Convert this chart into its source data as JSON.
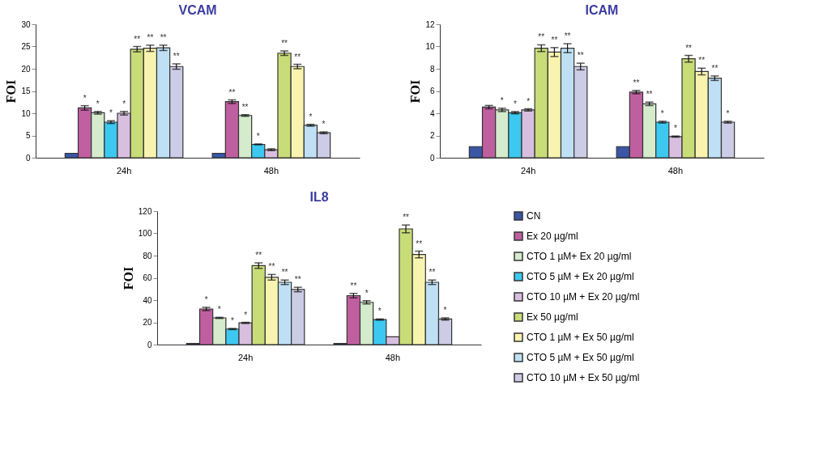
{
  "chart_data": [
    {
      "type": "bar",
      "title": "VCAM",
      "ylabel": "FOI",
      "categories": [
        "24h",
        "48h"
      ],
      "ylim": [
        0,
        30
      ],
      "yticks": [
        0,
        5,
        10,
        15,
        20,
        25,
        30
      ],
      "grid": false,
      "series": [
        {
          "color": "#3a56a5",
          "values": [
            1,
            1
          ]
        },
        {
          "color": "#c05fa0",
          "values": [
            11.2,
            12.6
          ],
          "errors": [
            0.5,
            0.4
          ],
          "value_labels": [
            "*",
            "**"
          ]
        },
        {
          "color": "#d4ebcc",
          "values": [
            10.1,
            9.5
          ],
          "errors": [
            0.3,
            0.2
          ],
          "value_labels": [
            "*",
            "**"
          ]
        },
        {
          "color": "#3cc8f0",
          "values": [
            8.0,
            3.0
          ],
          "errors": [
            0.3,
            0.1
          ],
          "value_labels": [
            "*",
            "*"
          ]
        },
        {
          "color": "#d8bfe0",
          "values": [
            10.0,
            1.8
          ],
          "errors": [
            0.4,
            0.2
          ],
          "value_labels": [
            "*",
            null
          ]
        },
        {
          "color": "#c8dc78",
          "values": [
            24.4,
            23.5
          ],
          "errors": [
            0.6,
            0.5
          ],
          "value_labels": [
            "**",
            "**"
          ]
        },
        {
          "color": "#f8f4b0",
          "values": [
            24.6,
            20.5
          ],
          "errors": [
            0.7,
            0.5
          ],
          "value_labels": [
            "**",
            "**"
          ]
        },
        {
          "color": "#bfe0f4",
          "values": [
            24.7,
            7.3
          ],
          "errors": [
            0.6,
            0.2
          ],
          "value_labels": [
            "**",
            "*"
          ]
        },
        {
          "color": "#cccce6",
          "values": [
            20.5,
            5.6
          ],
          "errors": [
            0.6,
            0.2
          ],
          "value_labels": [
            "**",
            "*"
          ]
        }
      ]
    },
    {
      "type": "bar",
      "title": "ICAM",
      "ylabel": "FOI",
      "categories": [
        "24h",
        "48h"
      ],
      "ylim": [
        0,
        12
      ],
      "yticks": [
        0,
        2,
        4,
        6,
        8,
        10,
        12
      ],
      "grid": false,
      "series": [
        {
          "color": "#3a56a5",
          "values": [
            1,
            1
          ]
        },
        {
          "color": "#c05fa0",
          "values": [
            4.55,
            5.9
          ],
          "errors": [
            0.15,
            0.15
          ],
          "value_labels": [
            null,
            "**"
          ]
        },
        {
          "color": "#d4ebcc",
          "values": [
            4.3,
            4.85
          ],
          "errors": [
            0.15,
            0.15
          ],
          "value_labels": [
            "*",
            "**"
          ]
        },
        {
          "color": "#3cc8f0",
          "values": [
            4.05,
            3.2
          ],
          "errors": [
            0.1,
            0.08
          ],
          "value_labels": [
            "*",
            "*"
          ]
        },
        {
          "color": "#d8bfe0",
          "values": [
            4.3,
            1.9
          ],
          "errors": [
            0.1,
            0.05
          ],
          "value_labels": [
            "*",
            "*"
          ]
        },
        {
          "color": "#c8dc78",
          "values": [
            9.85,
            8.9
          ],
          "errors": [
            0.3,
            0.3
          ],
          "value_labels": [
            "**",
            "**"
          ]
        },
        {
          "color": "#f8f4b0",
          "values": [
            9.5,
            7.75
          ],
          "errors": [
            0.4,
            0.3
          ],
          "value_labels": [
            "**",
            "**"
          ]
        },
        {
          "color": "#bfe0f4",
          "values": [
            9.85,
            7.15
          ],
          "errors": [
            0.4,
            0.2
          ],
          "value_labels": [
            "**",
            "**"
          ]
        },
        {
          "color": "#cccce6",
          "values": [
            8.2,
            3.2
          ],
          "errors": [
            0.3,
            0.08
          ],
          "value_labels": [
            "**",
            "*"
          ]
        }
      ]
    },
    {
      "type": "bar",
      "title": "IL8",
      "ylabel": "FOI",
      "categories": [
        "24h",
        "48h"
      ],
      "ylim": [
        0,
        120
      ],
      "yticks": [
        0,
        20,
        40,
        60,
        80,
        100,
        120
      ],
      "grid": false,
      "legend": "right",
      "series": [
        {
          "name": "CN",
          "color": "#3a56a5",
          "values": [
            1,
            1
          ]
        },
        {
          "name": "Ex 20 µg/ml",
          "color": "#c05fa0",
          "values": [
            32,
            44
          ],
          "errors": [
            1.5,
            2
          ],
          "value_labels": [
            "*",
            "**"
          ]
        },
        {
          "name": "CTO 1 µM+ Ex 20 µg/ml",
          "color": "#d4ebcc",
          "values": [
            24,
            38
          ],
          "errors": [
            0.5,
            1.5
          ],
          "value_labels": [
            "*",
            "*"
          ]
        },
        {
          "name": "CTO 5  µM + Ex 20 µg/ml",
          "color": "#3cc8f0",
          "values": [
            14,
            22.5
          ],
          "errors": [
            0.5,
            0.5
          ],
          "value_labels": [
            "*",
            "*"
          ]
        },
        {
          "name": "CTO 10  µM + Ex 20 µg/ml",
          "color": "#d8bfe0",
          "values": [
            19.5,
            7
          ],
          "errors": [
            0.5,
            null
          ],
          "value_labels": [
            "*",
            null
          ]
        },
        {
          "name": "Ex 50 µg/ml",
          "color": "#c8dc78",
          "values": [
            71,
            104
          ],
          "errors": [
            2.5,
            3.5
          ],
          "value_labels": [
            "**",
            "**"
          ]
        },
        {
          "name": "CTO 1  µM + Ex 50 µg/ml",
          "color": "#f8f4b0",
          "values": [
            60.5,
            81
          ],
          "errors": [
            2.5,
            3
          ],
          "value_labels": [
            "**",
            "**"
          ]
        },
        {
          "name": "CTO 5 µM + Ex 50 µg/ml",
          "color": "#bfe0f4",
          "values": [
            56,
            56
          ],
          "errors": [
            2,
            2
          ],
          "value_labels": [
            "**",
            "**"
          ]
        },
        {
          "name": "CTO 10  µM + Ex 50 µg/ml",
          "color": "#cccce6",
          "values": [
            49.5,
            23
          ],
          "errors": [
            2,
            1
          ],
          "value_labels": [
            "**",
            "*"
          ]
        }
      ]
    }
  ]
}
